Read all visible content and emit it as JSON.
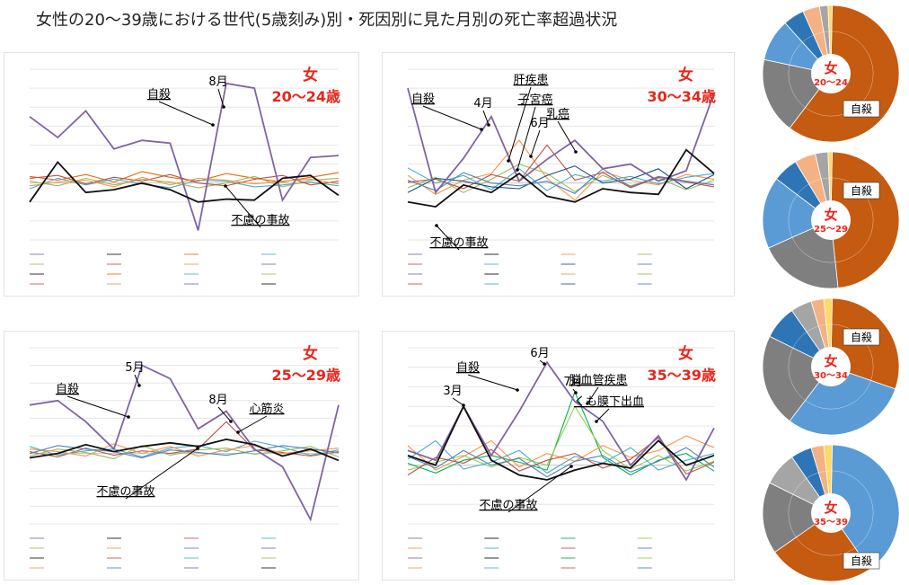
{
  "title": "女性の20～39歳における世代(5歳刻み)別・死因別に見た月別の死亡率超過状況",
  "colors": {
    "suicide": "#8064a2",
    "accident": "#111111",
    "sex_mark": "#e8261a",
    "pie_suicide": "#c55a11",
    "pie_other_blue": "#5b9bd5",
    "pie_gray": "#7f7f7f"
  },
  "chart_data": [
    {
      "type": "line",
      "panel": "20-24",
      "sex_label": "女",
      "age_label": "20～24歳",
      "x": [
        1,
        2,
        3,
        4,
        5,
        6,
        7,
        8,
        9,
        10,
        11,
        12
      ],
      "ylim": [
        -6,
        12
      ],
      "series": [
        {
          "name": "自殺",
          "color": "#8064a2",
          "values": [
            7.0,
            4.8,
            7.6,
            3.6,
            4.5,
            4.2,
            -5.0,
            10.5,
            10.0,
            -1.8,
            2.7,
            2.9
          ]
        },
        {
          "name": "不慮の事故",
          "color": "#111111",
          "values": [
            -2.0,
            2.2,
            -1.0,
            -0.7,
            0.0,
            -0.7,
            -2.0,
            -1.7,
            -1.8,
            0.5,
            0.8,
            -1.3
          ]
        },
        {
          "color": "#e46c0a",
          "values": [
            0.7,
            0.3,
            0.9,
            0.1,
            1.2,
            0.6,
            0.2,
            1.0,
            0.5,
            0.1,
            0.6,
            1.1
          ]
        },
        {
          "color": "#4bacc6",
          "values": [
            -0.6,
            0.5,
            -0.2,
            0.4,
            -0.1,
            -0.5,
            0.3,
            0.2,
            -0.4,
            -0.2,
            0.1,
            -0.3
          ]
        },
        {
          "color": "#9bbb59",
          "values": [
            0.2,
            -0.3,
            0.5,
            -0.2,
            0.4,
            0.1,
            -0.5,
            0.0,
            0.7,
            -0.4,
            0.3,
            0.5
          ]
        },
        {
          "color": "#c0504d",
          "values": [
            0.5,
            0.8,
            -0.1,
            0.6,
            0.2,
            0.9,
            0.0,
            -0.3,
            0.4,
            0.8,
            -0.2,
            0.2
          ]
        },
        {
          "color": "#f79646",
          "values": [
            -0.3,
            0.1,
            0.3,
            -0.4,
            0.6,
            -0.2,
            0.5,
            0.3,
            -0.1,
            0.2,
            0.4,
            -0.1
          ]
        }
      ],
      "annotations": [
        {
          "text": "自殺",
          "underline": true
        },
        {
          "text": "8月",
          "underline": false
        },
        {
          "text": "不慮の事故",
          "underline": true
        }
      ]
    },
    {
      "type": "line",
      "panel": "30-34",
      "sex_label": "女",
      "age_label": "30～34歳",
      "x": [
        1,
        2,
        3,
        4,
        5,
        6,
        7,
        8,
        9,
        10,
        11,
        12
      ],
      "ylim": [
        -6,
        12
      ],
      "series": [
        {
          "name": "自殺",
          "color": "#8064a2",
          "values": [
            10.0,
            -1.0,
            2.6,
            7.0,
            0.2,
            2.5,
            4.5,
            1.5,
            2.0,
            0.2,
            1.3,
            9.5
          ]
        },
        {
          "name": "不慮の事故",
          "color": "#111111",
          "values": [
            -2.0,
            -2.5,
            -0.2,
            -1.0,
            1.0,
            -1.4,
            -2.0,
            -0.6,
            -1.0,
            -1.2,
            3.5,
            1.0
          ]
        },
        {
          "name": "肝疾患",
          "color": "#f79646",
          "values": [
            0.8,
            -1.2,
            0.3,
            1.0,
            4.5,
            0.5,
            -1.8,
            1.2,
            0.3,
            -0.2,
            0.9,
            0.4
          ]
        },
        {
          "name": "子宮癌",
          "color": "#9bbb59",
          "values": [
            -0.5,
            0.6,
            -1.0,
            0.4,
            2.0,
            1.0,
            -0.9,
            0.8,
            -0.3,
            0.5,
            -0.7,
            0.3
          ]
        },
        {
          "name": "乳癌",
          "color": "#c0504d",
          "values": [
            0.1,
            0.4,
            -0.6,
            0.9,
            0.2,
            4.0,
            0.3,
            1.1,
            -0.5,
            0.6,
            0.1,
            -0.4
          ]
        },
        {
          "color": "#4bacc6",
          "values": [
            1.6,
            0.0,
            0.8,
            -0.7,
            1.5,
            -0.8,
            0.9,
            0.2,
            0.7,
            -0.1,
            0.6,
            1.0
          ]
        },
        {
          "color": "#1f4e79",
          "values": [
            -1.0,
            0.5,
            0.2,
            -0.4,
            -0.6,
            0.8,
            1.8,
            0.0,
            0.4,
            1.5,
            -0.6,
            0.9
          ]
        },
        {
          "color": "#4f81bd",
          "values": [
            0.3,
            -0.8,
            1.1,
            0.0,
            -0.3,
            0.2,
            -1.1,
            1.5,
            -0.4,
            0.7,
            0.2,
            -0.2
          ]
        }
      ],
      "annotations": [
        {
          "text": "自殺",
          "underline": true
        },
        {
          "text": "4月",
          "underline": false
        },
        {
          "text": "肝疾患",
          "underline": true
        },
        {
          "text": "子宮癌",
          "underline": true
        },
        {
          "text": "6月",
          "underline": false
        },
        {
          "text": "乳癌",
          "underline": true
        },
        {
          "text": "不慮の事故",
          "underline": true
        }
      ]
    },
    {
      "type": "line",
      "panel": "25-29",
      "sex_label": "女",
      "age_label": "25～29歳",
      "x": [
        1,
        2,
        3,
        4,
        5,
        6,
        7,
        8,
        9,
        10,
        11,
        12
      ],
      "ylim": [
        -8,
        12
      ],
      "series": [
        {
          "name": "自殺",
          "color": "#8064a2",
          "values": [
            5.5,
            6.0,
            3.6,
            0.5,
            10.0,
            8.5,
            2.8,
            4.8,
            0.5,
            -1.5,
            -7.5,
            5.5
          ]
        },
        {
          "name": "不慮の事故",
          "color": "#111111",
          "values": [
            -0.5,
            0.0,
            1.0,
            0.2,
            0.8,
            1.2,
            0.8,
            1.6,
            1.0,
            -0.3,
            0.5,
            -0.8
          ]
        },
        {
          "name": "心筋炎",
          "color": "#c0504d",
          "values": [
            0.2,
            -0.4,
            0.6,
            -0.2,
            0.3,
            0.0,
            0.5,
            3.6,
            0.4,
            0.1,
            -0.3,
            0.2
          ]
        },
        {
          "color": "#4bacc6",
          "values": [
            0.8,
            -0.2,
            0.3,
            0.5,
            -0.4,
            0.6,
            0.9,
            0.2,
            1.4,
            0.7,
            -0.2,
            0.4
          ]
        },
        {
          "color": "#9bbb59",
          "values": [
            -0.3,
            0.5,
            0.1,
            -0.6,
            0.9,
            -0.2,
            0.4,
            0.6,
            -0.1,
            0.3,
            0.8,
            -0.4
          ]
        },
        {
          "color": "#f79646",
          "values": [
            0.5,
            0.2,
            -0.3,
            1.1,
            0.0,
            0.8,
            -0.3,
            0.4,
            0.9,
            0.0,
            0.3,
            0.6
          ]
        },
        {
          "color": "#4f81bd",
          "values": [
            0.0,
            0.9,
            0.5,
            0.2,
            -0.5,
            0.4,
            0.1,
            -0.2,
            0.3,
            0.9,
            0.5,
            0.1
          ]
        }
      ],
      "annotations": [
        {
          "text": "自殺",
          "underline": true
        },
        {
          "text": "5月",
          "underline": false
        },
        {
          "text": "8月",
          "underline": false
        },
        {
          "text": "心筋炎",
          "underline": true
        },
        {
          "text": "不慮の事故",
          "underline": true
        }
      ]
    },
    {
      "type": "line",
      "panel": "35-39",
      "sex_label": "女",
      "age_label": "35～39歳",
      "x": [
        1,
        2,
        3,
        4,
        5,
        6,
        7,
        8,
        9,
        10,
        11,
        12
      ],
      "ylim": [
        -6,
        12
      ],
      "series": [
        {
          "name": "自殺",
          "color": "#8064a2",
          "values": [
            1.5,
            0.5,
            6.0,
            1.0,
            5.5,
            10.5,
            6.5,
            4.5,
            0.0,
            3.0,
            -1.5,
            3.8
          ]
        },
        {
          "name": "不慮の事故",
          "color": "#111111",
          "values": [
            1.0,
            0.0,
            6.0,
            0.5,
            -1.0,
            -1.5,
            -0.5,
            0.2,
            -0.3,
            2.5,
            0.0,
            1.0
          ]
        },
        {
          "name": "脳血管疾患",
          "color": "#00b050",
          "values": [
            0.2,
            -0.8,
            0.5,
            1.0,
            0.3,
            -0.5,
            7.5,
            0.8,
            -1.0,
            0.5,
            1.2,
            -0.6
          ]
        },
        {
          "name": "くも膜下出血",
          "color": "#92d050",
          "values": [
            -0.5,
            0.3,
            1.0,
            -0.2,
            0.8,
            0.0,
            6.0,
            1.5,
            -0.4,
            1.0,
            -0.6,
            0.4
          ]
        },
        {
          "color": "#f79646",
          "values": [
            2.0,
            -0.5,
            0.9,
            2.5,
            -0.2,
            1.2,
            0.4,
            2.0,
            0.8,
            1.5,
            3.0,
            1.8
          ]
        },
        {
          "color": "#4bacc6",
          "values": [
            0.6,
            2.5,
            -0.4,
            0.3,
            1.5,
            -0.8,
            0.9,
            0.2,
            1.8,
            -0.5,
            0.5,
            1.2
          ]
        },
        {
          "color": "#c0504d",
          "values": [
            -1.0,
            0.8,
            0.2,
            1.6,
            -0.6,
            0.5,
            1.2,
            -0.3,
            0.6,
            2.8,
            -0.9,
            0.3
          ]
        },
        {
          "color": "#4f81bd",
          "values": [
            0.9,
            -0.3,
            1.5,
            0.0,
            0.7,
            -1.2,
            0.4,
            1.0,
            -0.7,
            0.4,
            1.8,
            -0.2
          ]
        }
      ],
      "annotations": [
        {
          "text": "自殺",
          "underline": true
        },
        {
          "text": "3月",
          "underline": false
        },
        {
          "text": "6月",
          "underline": false
        },
        {
          "text": "7月",
          "underline": false
        },
        {
          "text": "脳血管疾患",
          "underline": true
        },
        {
          "text": "くも膜下出血",
          "underline": true
        },
        {
          "text": "不慮の事故",
          "underline": true
        }
      ]
    },
    {
      "type": "pie",
      "panel": "pie-20-24",
      "center_label": [
        "女",
        "20～24"
      ],
      "callout": "自殺",
      "slices": [
        {
          "label": "自殺",
          "value": 60,
          "color": "#c55a11"
        },
        {
          "value": 18,
          "color": "#7f7f7f"
        },
        {
          "value": 10,
          "color": "#5b9bd5"
        },
        {
          "value": 5,
          "color": "#2e75b6"
        },
        {
          "value": 4,
          "color": "#f4b183"
        },
        {
          "value": 2,
          "color": "#a5a5a5"
        },
        {
          "value": 1,
          "color": "#ffd966"
        }
      ]
    },
    {
      "type": "pie",
      "panel": "pie-25-29",
      "center_label": [
        "女",
        "25～29"
      ],
      "callout": "自殺",
      "slices": [
        {
          "label": "自殺",
          "value": 48,
          "color": "#c55a11"
        },
        {
          "value": 20,
          "color": "#7f7f7f"
        },
        {
          "value": 17,
          "color": "#5b9bd5"
        },
        {
          "value": 6,
          "color": "#2e75b6"
        },
        {
          "value": 5,
          "color": "#f4b183"
        },
        {
          "value": 3,
          "color": "#a5a5a5"
        },
        {
          "value": 1,
          "color": "#ffd966"
        }
      ]
    },
    {
      "type": "pie",
      "panel": "pie-30-34",
      "center_label": [
        "女",
        "30～34"
      ],
      "callout": "自殺",
      "slices": [
        {
          "label": "自殺",
          "value": 30,
          "color": "#c55a11"
        },
        {
          "value": 30,
          "color": "#5b9bd5"
        },
        {
          "value": 22,
          "color": "#7f7f7f"
        },
        {
          "value": 8,
          "color": "#2e75b6"
        },
        {
          "value": 5,
          "color": "#a5a5a5"
        },
        {
          "value": 3,
          "color": "#f4b183"
        },
        {
          "value": 2,
          "color": "#ffd966"
        }
      ]
    },
    {
      "type": "pie",
      "panel": "pie-35-39",
      "center_label": [
        "女",
        "35～39"
      ],
      "callout": "自殺",
      "slices": [
        {
          "value": 40,
          "color": "#5b9bd5"
        },
        {
          "label": "自殺",
          "value": 25,
          "color": "#c55a11"
        },
        {
          "value": 17,
          "color": "#7f7f7f"
        },
        {
          "value": 8,
          "color": "#a5a5a5"
        },
        {
          "value": 5,
          "color": "#2e75b6"
        },
        {
          "value": 3,
          "color": "#f4b183"
        },
        {
          "value": 2,
          "color": "#ffd966"
        }
      ]
    }
  ]
}
